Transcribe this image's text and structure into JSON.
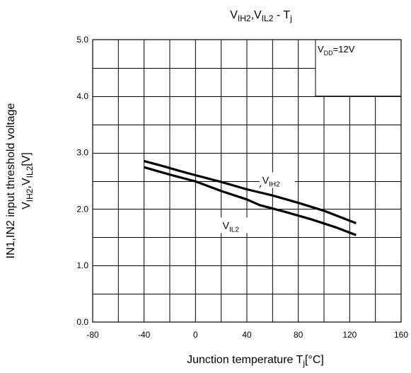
{
  "chart_data": {
    "type": "line",
    "title": {
      "main": "V",
      "parts": [
        {
          "text": "V",
          "sub": "IH2"
        },
        {
          "text": ",V",
          "sub": "IL2"
        },
        {
          "text": " - T",
          "sub": "j"
        }
      ]
    },
    "xlabel": {
      "main": "Junction temperature T",
      "sub": "j",
      "suffix": "[°C]"
    },
    "ylabel_line1": "IN1,IN2 input threshold voltage",
    "ylabel_line2": {
      "parts": [
        {
          "text": "V",
          "sub": "IH2"
        },
        {
          "text": ",V",
          "sub": "IL2"
        },
        {
          "text": "[V]",
          "sub": ""
        }
      ]
    },
    "xlim": [
      -80,
      160
    ],
    "ylim": [
      0,
      5
    ],
    "x_ticks": [
      -80,
      -40,
      0,
      40,
      80,
      120,
      160
    ],
    "x_minor_step": 20,
    "y_ticks": [
      0.0,
      1.0,
      2.0,
      3.0,
      4.0,
      5.0
    ],
    "y_minor_step": 0.5,
    "grid": true,
    "annotation": {
      "text": "V",
      "sub": "DD",
      "suffix": "=12V"
    },
    "series": [
      {
        "name": "VIH2",
        "label": {
          "text": "V",
          "sub": "IH2"
        },
        "color": "#000000",
        "points": [
          [
            -40,
            2.85
          ],
          [
            -25,
            2.76
          ],
          [
            -10,
            2.66
          ],
          [
            0,
            2.6
          ],
          [
            20,
            2.48
          ],
          [
            40,
            2.35
          ],
          [
            60,
            2.24
          ],
          [
            80,
            2.11
          ],
          [
            100,
            1.97
          ],
          [
            125,
            1.75
          ]
        ]
      },
      {
        "name": "VIL2",
        "label": {
          "text": "V",
          "sub": "IL2"
        },
        "color": "#000000",
        "points": [
          [
            -40,
            2.74
          ],
          [
            -20,
            2.61
          ],
          [
            0,
            2.49
          ],
          [
            20,
            2.32
          ],
          [
            40,
            2.17
          ],
          [
            50,
            2.07
          ],
          [
            70,
            1.95
          ],
          [
            90,
            1.82
          ],
          [
            110,
            1.67
          ],
          [
            125,
            1.54
          ]
        ]
      }
    ]
  }
}
